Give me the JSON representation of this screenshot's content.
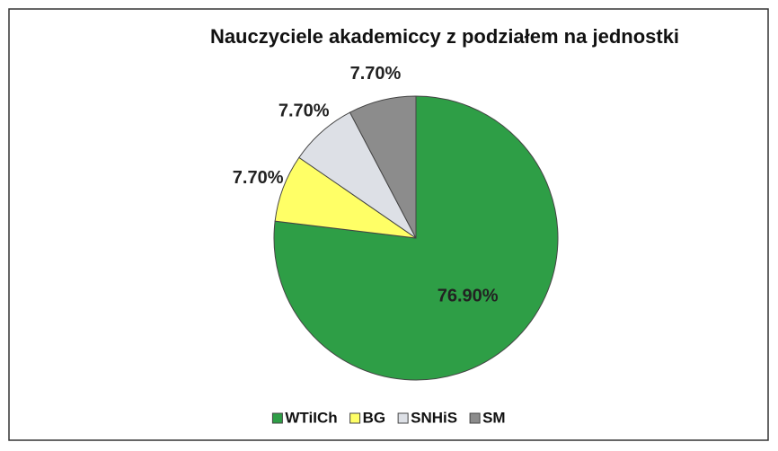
{
  "chart_data": {
    "type": "pie",
    "title": "Nauczyciele akademiccy z podziałem na jednostki",
    "categories": [
      "WTiICh",
      "BG",
      "SNHiS",
      "SM"
    ],
    "values": [
      76.9,
      7.7,
      7.7,
      7.7
    ],
    "value_labels": [
      "76.90%",
      "7.70%",
      "7.70%",
      "7.70%"
    ],
    "colors": [
      "#2e9e46",
      "#ffff66",
      "#dde0e6",
      "#8c8c8c"
    ],
    "legend": "bottom"
  }
}
